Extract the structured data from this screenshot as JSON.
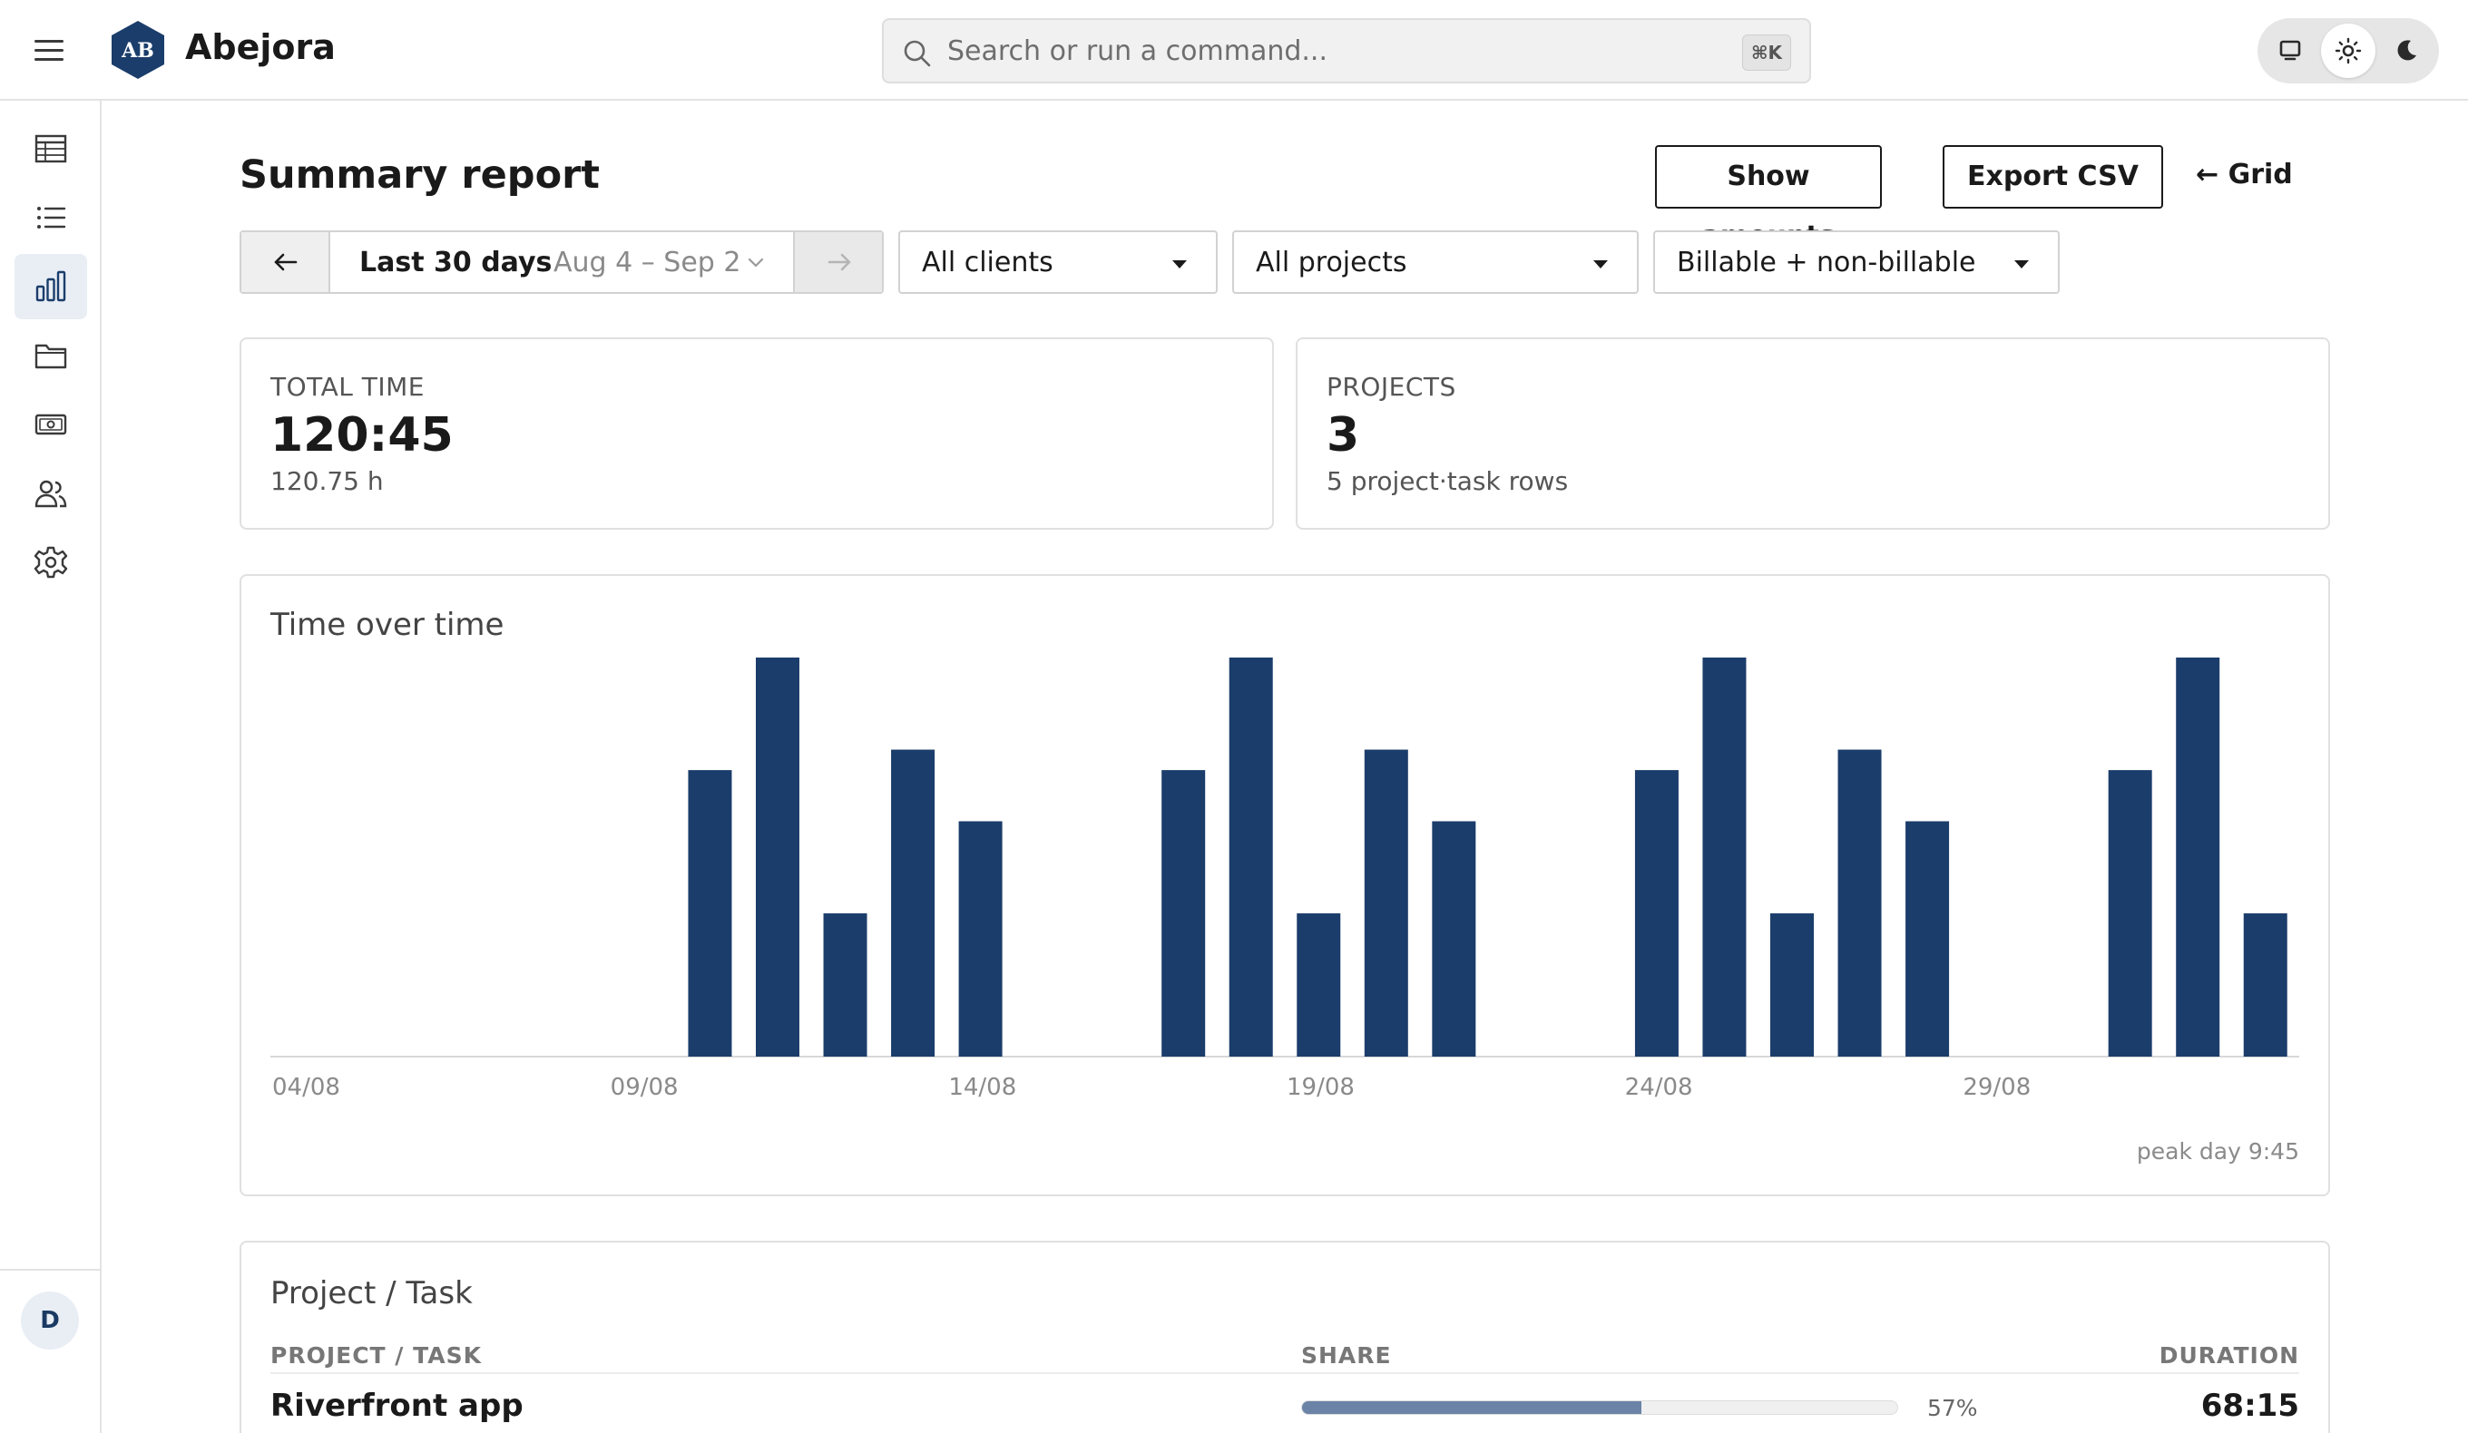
{
  "app": {
    "name": "Abejora",
    "logo_text": "AB"
  },
  "search": {
    "placeholder": "Search or run a command...",
    "shortcut": "⌘K"
  },
  "theme": {
    "options": [
      "monitor-icon",
      "sun-icon",
      "moon-icon"
    ],
    "selected": "light"
  },
  "sidebar": {
    "items": [
      {
        "icon": "table-icon",
        "active": false
      },
      {
        "icon": "list-icon",
        "active": false
      },
      {
        "icon": "bar-chart-icon",
        "active": true
      },
      {
        "icon": "folder-icon",
        "active": false
      },
      {
        "icon": "money-icon",
        "active": false
      },
      {
        "icon": "users-icon",
        "active": false
      },
      {
        "icon": "gear-icon",
        "active": false
      }
    ],
    "user_initial": "D"
  },
  "page": {
    "title": "Summary report",
    "buttons": {
      "show_amounts": "Show amounts",
      "export_csv": "Export CSV",
      "grid": "← Grid"
    }
  },
  "filters": {
    "range_label": "Last 30 days",
    "range_dates": "Aug 4 – Sep 2",
    "clients": "All clients",
    "projects": "All projects",
    "billable": "Billable + non-billable"
  },
  "stats": {
    "total_time": {
      "label": "TOTAL TIME",
      "value": "120:45",
      "sub": "120.75 h"
    },
    "projects": {
      "label": "PROJECTS",
      "value": "3",
      "sub": "5 project·task rows"
    }
  },
  "chart_data": {
    "type": "bar",
    "title": "Time over time",
    "xlabel": "",
    "ylabel": "",
    "x_ticks": [
      "04/08",
      "09/08",
      "14/08",
      "19/08",
      "24/08",
      "29/08"
    ],
    "categories": [
      "04/08",
      "05/08",
      "06/08",
      "07/08",
      "08/08",
      "09/08",
      "10/08",
      "11/08",
      "12/08",
      "13/08",
      "14/08",
      "15/08",
      "16/08",
      "17/08",
      "18/08",
      "19/08",
      "20/08",
      "21/08",
      "22/08",
      "23/08",
      "24/08",
      "25/08",
      "26/08",
      "27/08",
      "28/08",
      "29/08",
      "30/08",
      "31/08",
      "01/09",
      "02/09"
    ],
    "values": [
      0,
      0,
      0,
      0,
      0,
      0,
      7.0,
      9.75,
      3.5,
      7.5,
      5.75,
      0,
      0,
      7.0,
      9.75,
      3.5,
      7.5,
      5.75,
      0,
      0,
      7.0,
      9.75,
      3.5,
      7.5,
      5.75,
      0,
      0,
      7.0,
      9.75,
      3.5
    ],
    "ylim": [
      0,
      9.75
    ],
    "grid": false,
    "color": "#1b3d6b",
    "annotation": "peak day 9:45"
  },
  "table": {
    "title": "Project / Task",
    "headers": {
      "name": "PROJECT / TASK",
      "share": "SHARE",
      "duration": "DURATION"
    },
    "rows": [
      {
        "name": "Riverfront app",
        "share_pct": 57,
        "share_label": "57%",
        "duration": "68:15"
      }
    ]
  }
}
